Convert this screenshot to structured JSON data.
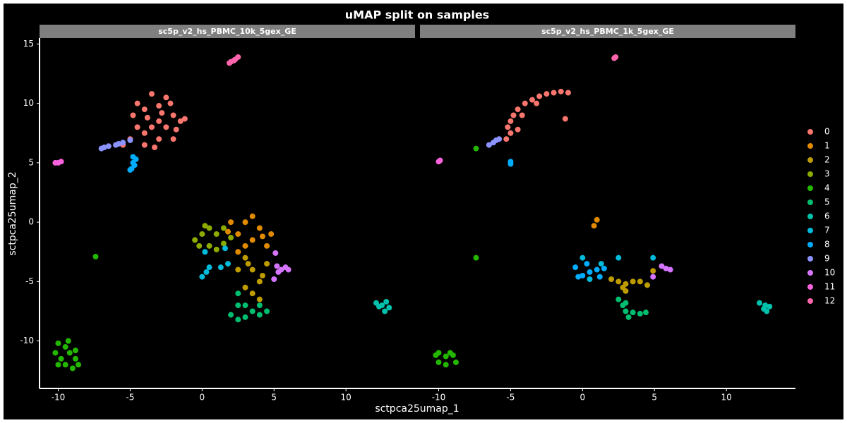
{
  "chart_data": {
    "type": "scatter",
    "title": "uMAP split on samples",
    "x_label": "sctpca25umap_1",
    "y_label": "sctpca25umap_2",
    "xlim": [
      -11.3,
      14.8
    ],
    "ylim": [
      -14,
      15.5
    ],
    "xticks": [
      -10,
      -5,
      0,
      5,
      10
    ],
    "yticks": [
      -10,
      -5,
      0,
      5,
      10,
      15
    ],
    "series": [
      {
        "name": "0",
        "color": "#F8766D"
      },
      {
        "name": "1",
        "color": "#E18A00"
      },
      {
        "name": "2",
        "color": "#BE9C00"
      },
      {
        "name": "3",
        "color": "#8CAB00"
      },
      {
        "name": "4",
        "color": "#24B700"
      },
      {
        "name": "5",
        "color": "#00BE70"
      },
      {
        "name": "6",
        "color": "#00C1AB"
      },
      {
        "name": "7",
        "color": "#00BBDA"
      },
      {
        "name": "8",
        "color": "#00ACFC"
      },
      {
        "name": "9",
        "color": "#8B93FF"
      },
      {
        "name": "10",
        "color": "#D575FE"
      },
      {
        "name": "11",
        "color": "#F962DD"
      },
      {
        "name": "12",
        "color": "#FF65AC"
      }
    ],
    "panels": [
      {
        "title": "sc5p_v2_hs_PBMC_10k_5gex_GE",
        "clusters": [
          {
            "x": [
              -3,
              -4,
              -2.5,
              -3.5,
              -2,
              -1.5,
              -2,
              -3,
              -4,
              -4.5,
              -5,
              -4.5,
              -3,
              -2.5,
              -3.5,
              -4,
              -5.5,
              -1.2,
              -3.3,
              -2.2,
              -3.8,
              -4.8,
              -1.8,
              -2.8
            ],
            "y": [
              8.5,
              9.5,
              10.5,
              10.8,
              9,
              8.5,
              7,
              7,
              7.5,
              8,
              7,
              10,
              9.8,
              8,
              8,
              6.5,
              6.5,
              8.7,
              6.3,
              10,
              8.8,
              9,
              7.8,
              9.2
            ]
          },
          {
            "x": [
              3,
              2.5,
              3.5,
              4,
              4.5,
              3,
              2,
              3.5,
              4.8,
              2.5,
              4.2,
              1.8
            ],
            "y": [
              0,
              -1,
              -1.5,
              -0.5,
              -2,
              -2,
              0,
              0.5,
              -1,
              -2.5,
              -1.2,
              -0.8
            ]
          },
          {
            "x": [
              3,
              3.5,
              4,
              3,
              4.5,
              3.5,
              2.5,
              4,
              3.2,
              4.2
            ],
            "y": [
              -3,
              -4,
              -5,
              -5.5,
              -3.5,
              -6,
              -4,
              -6.5,
              -3.5,
              -4.5
            ]
          },
          {
            "x": [
              -0.5,
              0,
              0.5,
              1,
              0.5,
              1.5,
              1,
              -0.2,
              1.5,
              0.2,
              2
            ],
            "y": [
              -1.5,
              -1,
              -0.5,
              -1,
              -2,
              -0.5,
              -2.3,
              -2,
              -1.8,
              -0.3,
              -1.3
            ]
          },
          {
            "x": [
              -10,
              -9.5,
              -10.2,
              -9.8,
              -9.2,
              -8.8,
              -9.5,
              -9,
              -10,
              -8.6,
              -9.3,
              -8.8,
              -7.4
            ],
            "y": [
              -10.2,
              -10.5,
              -11,
              -11.5,
              -11,
              -11.5,
              -12,
              -12.3,
              -12,
              -12,
              -10,
              -10.8,
              -2.9
            ]
          },
          {
            "x": [
              2.5,
              2.5,
              3,
              2.5,
              3.5,
              4,
              4.5,
              3,
              2,
              4
            ],
            "y": [
              -6,
              -7,
              -8,
              -8.2,
              -7.5,
              -7.8,
              -7.5,
              -7,
              -7.8,
              -7
            ]
          },
          {
            "x": [
              12.5,
              12.8,
              13,
              12.3,
              12.7,
              12.1
            ],
            "y": [
              -7,
              -6.7,
              -7.2,
              -7.1,
              -7.5,
              -6.8
            ]
          },
          {
            "x": [
              0.2,
              0.5,
              0.3,
              1.3,
              1.6,
              1.8,
              0
            ],
            "y": [
              -2.5,
              -3.8,
              -4.2,
              -3.8,
              -2.2,
              -3.5,
              -4.6
            ]
          },
          {
            "x": [
              -4.8,
              -4.8,
              -4.9,
              -4.7,
              -5,
              -4.6
            ],
            "y": [
              5.5,
              5,
              4.5,
              4.8,
              4.4,
              5.3
            ]
          },
          {
            "x": [
              -7,
              -6.5,
              -6,
              -5.5,
              -5,
              -6.8,
              -5.8
            ],
            "y": [
              6.2,
              6.4,
              6.5,
              6.7,
              6.9,
              6.3,
              6.6
            ]
          },
          {
            "x": [
              5.2,
              5.5,
              5.8,
              6,
              5.3,
              5,
              5.1
            ],
            "y": [
              -3.7,
              -4,
              -3.8,
              -4,
              -4.2,
              -4.8,
              -2.6
            ]
          },
          {
            "x": [
              -10,
              -9.8,
              -10.2
            ],
            "y": [
              5,
              5.1,
              5
            ]
          },
          {
            "x": [
              2,
              2.3,
              2.5,
              2.2,
              1.9
            ],
            "y": [
              13.5,
              13.7,
              13.9,
              13.6,
              13.4
            ]
          }
        ]
      },
      {
        "title": "sc5p_v2_hs_PBMC_1k_5gex_GE",
        "clusters": [
          {
            "x": [
              -5,
              -5.2,
              -5,
              -4.8,
              -4.5,
              -4,
              -3.5,
              -3,
              -2.5,
              -2,
              -1.5,
              -1,
              -4.5,
              -5.3,
              -4.2,
              -3.2,
              -1.2
            ],
            "y": [
              7.5,
              8,
              8.5,
              9,
              9.5,
              10,
              10.3,
              10.6,
              10.8,
              10.9,
              11,
              10.9,
              7.8,
              7,
              9,
              10,
              8.7
            ]
          },
          {
            "x": [
              1,
              0.8
            ],
            "y": [
              0.2,
              -0.3
            ]
          },
          {
            "x": [
              2,
              2.5,
              3,
              3.5,
              4,
              3,
              4.5,
              4.9,
              2.8
            ],
            "y": [
              -4.8,
              -5,
              -5.2,
              -5,
              -5,
              -5.8,
              -5.3,
              -4.1,
              -5.5
            ]
          },
          {
            "x": [],
            "y": []
          },
          {
            "x": [
              -7.4,
              -7.4,
              -10,
              -9.5,
              -9,
              -10,
              -9.5,
              -8.8,
              -9.2,
              -10.2
            ],
            "y": [
              6.2,
              -3,
              -11,
              -11.3,
              -11.2,
              -11.8,
              -12,
              -11.8,
              -11,
              -11.2
            ]
          },
          {
            "x": [
              2.5,
              3,
              3.2,
              3.5,
              4,
              4.4,
              2.8,
              3
            ],
            "y": [
              -6.5,
              -7.5,
              -8,
              -7.6,
              -7.7,
              -7.6,
              -7,
              -6.8
            ]
          },
          {
            "x": [
              12.3,
              12.7,
              12.8,
              13,
              12.6
            ],
            "y": [
              -6.8,
              -7,
              -7.5,
              -7.1,
              -7.3
            ]
          },
          {
            "x": [
              0,
              2.5,
              4.9,
              1.3,
              0.5
            ],
            "y": [
              -3,
              -3,
              -3,
              -3.5,
              -4.8
            ]
          },
          {
            "x": [
              -5,
              -5,
              -0.5,
              0,
              0.5,
              1,
              1.2,
              0.3,
              -0.3,
              1.5
            ],
            "y": [
              4.9,
              5.1,
              -3.8,
              -4.5,
              -4.2,
              -4,
              -4.6,
              -3.5,
              -4.6,
              -3.9
            ]
          },
          {
            "x": [
              -6.5,
              -6.2,
              -6,
              -5.8
            ],
            "y": [
              6.5,
              6.7,
              6.9,
              7
            ]
          },
          {
            "x": [
              5.5,
              5.8,
              6.1,
              4.9
            ],
            "y": [
              -3.7,
              -3.9,
              -4,
              -4.6
            ]
          },
          {
            "x": [
              -10,
              -9.9
            ],
            "y": [
              5.1,
              5.2
            ]
          },
          {
            "x": [
              2.2,
              2.3
            ],
            "y": [
              13.8,
              13.9
            ]
          }
        ]
      }
    ]
  }
}
